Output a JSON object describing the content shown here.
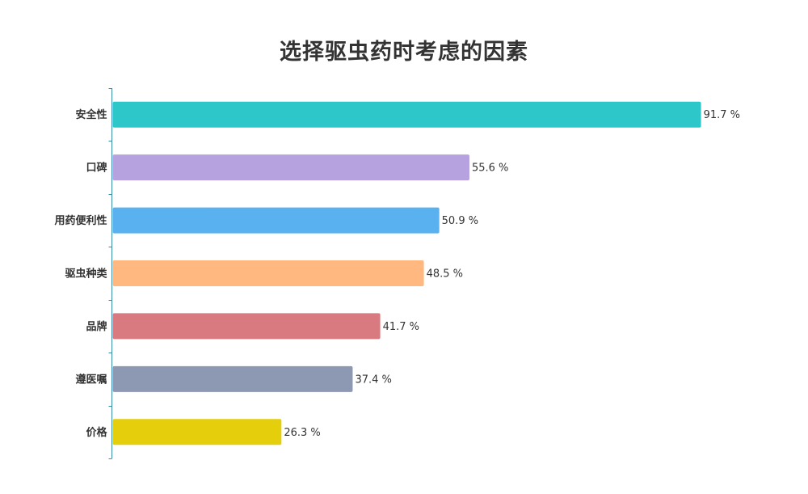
{
  "chart_data": {
    "type": "bar",
    "orientation": "horizontal",
    "title": "选择驱虫药时考虑的因素",
    "xlabel": "",
    "ylabel": "",
    "categories": [
      "安全性",
      "口碑",
      "用药便利性",
      "驱虫种类",
      "品牌",
      "遵医嘱",
      "价格"
    ],
    "values": [
      91.7,
      55.6,
      50.9,
      48.5,
      41.7,
      37.4,
      26.3
    ],
    "value_labels": [
      "91.7 %",
      "55.6 %",
      "50.9 %",
      "48.5 %",
      "41.7 %",
      "37.4 %",
      "26.3 %"
    ],
    "colors": [
      "#2ec7c9",
      "#b6a2de",
      "#5ab1ef",
      "#ffb980",
      "#d87a80",
      "#8d98b3",
      "#e5cf0d"
    ],
    "xlim": [
      0,
      100
    ],
    "grid": false,
    "legend": "none"
  }
}
